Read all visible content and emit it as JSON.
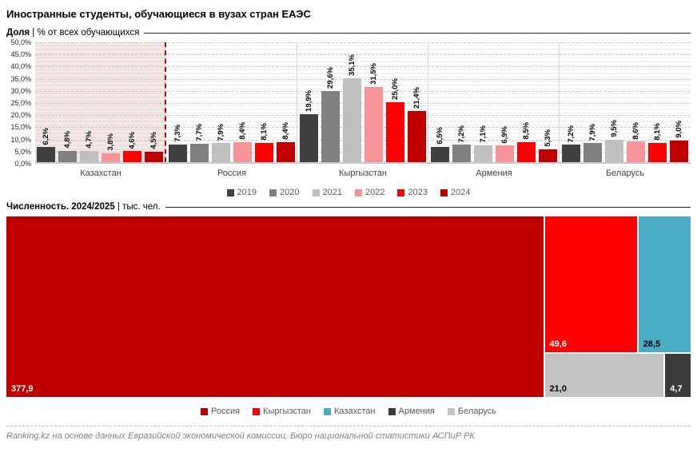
{
  "title": "Иностранные студенты, обучающиеся в вузах стран ЕАЭС",
  "sections": {
    "share": {
      "title_bold": "Доля",
      "title_rest": " | % от всех обучающихся"
    },
    "count": {
      "title_bold": "Численность. 2024/2025",
      "title_rest": " | тыс. чел."
    }
  },
  "footer": "Ranking.kz на основе данных Евразийской экономической комиссии, Бюро национальной статистики АСПиР РК",
  "chart_data": [
    {
      "type": "bar",
      "title": "Доля | % от всех обучающихся",
      "categories": [
        "Казахстан",
        "Россия",
        "Кыргызстан",
        "Армения",
        "Беларусь"
      ],
      "series": [
        {
          "name": "2019",
          "color": "#404040",
          "values": [
            6.2,
            7.3,
            19.9,
            6.5,
            7.2
          ]
        },
        {
          "name": "2020",
          "color": "#808080",
          "values": [
            4.8,
            7.7,
            29.6,
            7.2,
            7.9
          ]
        },
        {
          "name": "2021",
          "color": "#bfbfbf",
          "values": [
            4.7,
            7.9,
            35.1,
            7.1,
            9.5
          ]
        },
        {
          "name": "2022",
          "color": "#f7949a",
          "values": [
            3.8,
            8.4,
            31.5,
            6.9,
            8.6
          ]
        },
        {
          "name": "2023",
          "color": "#fe0000",
          "values": [
            4.6,
            8.1,
            25.0,
            8.5,
            8.1
          ]
        },
        {
          "name": "2024",
          "color": "#c00000",
          "values": [
            4.5,
            8.4,
            21.4,
            5.3,
            9.0
          ]
        }
      ],
      "ylim": [
        0,
        50
      ],
      "ytick_step": 5,
      "ytick_labels": [
        "0,0%",
        "5,0%",
        "10,0%",
        "15,0%",
        "20,0%",
        "25,0%",
        "30,0%",
        "35,0%",
        "40,0%",
        "45,0%",
        "50,0%"
      ],
      "grid": "dashed horizontal",
      "legend_position": "bottom center",
      "highlight": {
        "category": "Казахстан",
        "fill": "light pink panel",
        "border": "red dashed vertical line"
      }
    },
    {
      "type": "treemap",
      "title": "Численность. 2024/2025 | тыс. чел.",
      "items": [
        {
          "name": "Россия",
          "value": 377.9,
          "color": "#c00000",
          "label_color": "#ffffff"
        },
        {
          "name": "Кыргызстан",
          "value": 49.6,
          "color": "#fe0000",
          "label_color": "#ffffff"
        },
        {
          "name": "Казахстан",
          "value": 28.5,
          "color": "#4bacc6",
          "label_color": "#000000"
        },
        {
          "name": "Беларусь",
          "value": 21.0,
          "color": "#c3c3c3",
          "label_color": "#000000"
        },
        {
          "name": "Армения",
          "value": 4.7,
          "color": "#3b3b3b",
          "label_color": "#ffffff"
        }
      ],
      "legend_order": [
        "Россия",
        "Кыргызстан",
        "Казахстан",
        "Армения",
        "Беларусь"
      ],
      "layout_hint": {
        "main": "Россия",
        "rows": [
          [
            "Кыргызстан",
            "Казахстан"
          ],
          [
            "Беларусь",
            "Армения"
          ]
        ]
      },
      "legend_position": "bottom center"
    }
  ]
}
